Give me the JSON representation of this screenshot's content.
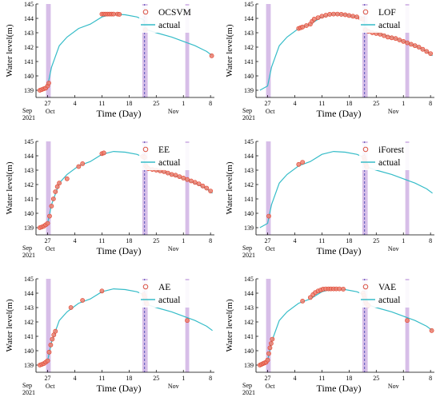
{
  "colors": {
    "line": "#35bcc8",
    "anomaly_fill": "#f07f6f",
    "anomaly_stroke": "#d9402d",
    "highlight_band": "#c9a8e0",
    "dash_line": "#3b3bb0"
  },
  "x_tick_labels": [
    "27",
    "4",
    "11",
    "18",
    "25",
    "1",
    "8"
  ],
  "month_labels": {
    "sep": "Sep",
    "year": "2021",
    "oct": "Oct",
    "nov": "Nov"
  },
  "y_tick_labels": [
    "139",
    "140",
    "141",
    "142",
    "143",
    "144",
    "145"
  ],
  "xlabel": "Time (Day)",
  "ylabel": "Water level(m)",
  "actual_label": "actual",
  "chart_data": [
    {
      "type": "line",
      "title": "",
      "xlabel": "Time (Day)",
      "ylabel": "Water level(m)",
      "legend": {
        "position": "top-right",
        "entries": [
          "OCSVM",
          "actual"
        ]
      },
      "series": [
        {
          "name": "actual",
          "kind": "line",
          "x": [
            -2,
            0,
            1,
            3,
            5,
            8,
            11,
            14,
            17,
            20,
            23,
            24.8,
            25.2,
            28,
            32,
            35,
            38,
            41,
            42.5
          ],
          "y": [
            139.0,
            139.3,
            140.6,
            142.1,
            142.7,
            143.3,
            143.6,
            144.1,
            144.3,
            144.25,
            144.1,
            143.9,
            143.25,
            143.0,
            142.7,
            142.4,
            142.1,
            141.7,
            141.4
          ]
        },
        {
          "name": "OCSVM",
          "kind": "scatter",
          "x": [
            -2,
            -1.5,
            -1,
            -0.5,
            0,
            0.3,
            14,
            14.5,
            15,
            15.5,
            16,
            16.5,
            17,
            18,
            18.5,
            25.2,
            42.3
          ],
          "y": [
            139.0,
            139.05,
            139.1,
            139.15,
            139.3,
            139.5,
            144.3,
            144.3,
            144.3,
            144.3,
            144.3,
            144.3,
            144.3,
            144.3,
            144.28,
            143.2,
            141.4
          ]
        }
      ]
    },
    {
      "type": "line",
      "title": "",
      "xlabel": "Time (Day)",
      "ylabel": "Water level(m)",
      "legend": {
        "position": "top-right",
        "entries": [
          "LOF",
          "actual"
        ]
      },
      "series": [
        {
          "name": "actual",
          "kind": "line",
          "x": [
            -2,
            0,
            1,
            3,
            5,
            8,
            11,
            14,
            17,
            20,
            23,
            24.8,
            25.2,
            28,
            32,
            35,
            38,
            41,
            42.5
          ],
          "y": [
            139.0,
            139.3,
            140.6,
            142.1,
            142.7,
            143.3,
            143.6,
            144.1,
            144.3,
            144.25,
            144.1,
            143.9,
            143.25,
            143.0,
            142.7,
            142.4,
            142.1,
            141.7,
            141.4
          ]
        },
        {
          "name": "LOF",
          "kind": "scatter",
          "x": [
            8,
            8.5,
            9,
            10,
            11,
            11.5,
            12,
            13,
            14,
            15,
            16,
            17,
            18,
            19,
            20,
            21,
            22,
            23,
            24,
            24.5,
            25.2,
            26,
            27,
            28,
            29,
            30,
            31,
            32,
            33,
            34,
            35,
            36,
            37,
            38,
            39,
            40,
            41,
            42
          ],
          "y": [
            143.3,
            143.35,
            143.4,
            143.5,
            143.6,
            143.8,
            143.95,
            144.05,
            144.15,
            144.22,
            144.28,
            144.3,
            144.3,
            144.28,
            144.25,
            144.2,
            144.15,
            144.1,
            144.0,
            143.95,
            143.2,
            143.1,
            143.0,
            142.95,
            142.9,
            142.8,
            142.7,
            142.65,
            142.6,
            142.5,
            142.4,
            142.3,
            142.2,
            142.1,
            142.0,
            141.85,
            141.7,
            141.55
          ]
        }
      ]
    },
    {
      "type": "line",
      "title": "",
      "xlabel": "Time (Day)",
      "ylabel": "Water level(m)",
      "legend": {
        "position": "top-right",
        "entries": [
          "EE",
          "actual"
        ]
      },
      "series": [
        {
          "name": "actual",
          "kind": "line",
          "x": [
            -2,
            0,
            1,
            3,
            5,
            8,
            11,
            14,
            17,
            20,
            23,
            24.8,
            25.2,
            28,
            32,
            35,
            38,
            41,
            42.5
          ],
          "y": [
            139.0,
            139.3,
            140.6,
            142.1,
            142.7,
            143.3,
            143.6,
            144.1,
            144.3,
            144.25,
            144.1,
            143.9,
            143.25,
            143.0,
            142.7,
            142.4,
            142.1,
            141.7,
            141.4
          ]
        },
        {
          "name": "EE",
          "kind": "scatter",
          "x": [
            -2,
            -1.5,
            -1,
            -0.5,
            0,
            0.5,
            1,
            1.5,
            2,
            2.5,
            3,
            5,
            8,
            9,
            14,
            14.5,
            24.5,
            25,
            25.3,
            25.6,
            26,
            27,
            28,
            29,
            30,
            31,
            32,
            33,
            34,
            35,
            36,
            37,
            38,
            39,
            40,
            41,
            42
          ],
          "y": [
            139.0,
            139.05,
            139.1,
            139.2,
            139.3,
            139.8,
            140.5,
            141.0,
            141.5,
            141.85,
            142.1,
            142.4,
            143.25,
            143.45,
            144.15,
            144.2,
            143.95,
            143.9,
            143.3,
            143.2,
            143.1,
            143.05,
            143.0,
            142.95,
            142.9,
            142.8,
            142.7,
            142.65,
            142.55,
            142.45,
            142.35,
            142.25,
            142.15,
            142.05,
            141.9,
            141.75,
            141.55
          ]
        }
      ]
    },
    {
      "type": "line",
      "title": "",
      "xlabel": "Time (Day)",
      "ylabel": "Water level(m)",
      "legend": {
        "position": "top-right",
        "entries": [
          "iForest",
          "actual"
        ]
      },
      "series": [
        {
          "name": "actual",
          "kind": "line",
          "x": [
            -2,
            0,
            1,
            3,
            5,
            8,
            11,
            14,
            17,
            20,
            23,
            24.8,
            25.2,
            28,
            32,
            35,
            38,
            41,
            42.5
          ],
          "y": [
            139.0,
            139.3,
            140.6,
            142.1,
            142.7,
            143.3,
            143.6,
            144.1,
            144.3,
            144.25,
            144.1,
            143.9,
            143.25,
            143.0,
            142.7,
            142.4,
            142.1,
            141.7,
            141.4
          ]
        },
        {
          "name": "iForest",
          "kind": "scatter",
          "x": [
            0.3,
            8,
            9,
            24.8,
            25,
            25.2,
            25.4,
            25.6
          ],
          "y": [
            139.8,
            143.4,
            143.55,
            143.9,
            143.7,
            143.5,
            143.35,
            143.2
          ]
        }
      ]
    },
    {
      "type": "line",
      "title": "",
      "xlabel": "Time (Day)",
      "ylabel": "Water level(m)",
      "legend": {
        "position": "top-right",
        "entries": [
          "AE",
          "actual"
        ]
      },
      "series": [
        {
          "name": "actual",
          "kind": "line",
          "x": [
            -2,
            0,
            1,
            3,
            5,
            8,
            11,
            14,
            17,
            20,
            23,
            24.8,
            25.2,
            28,
            32,
            35,
            38,
            41,
            42.5
          ],
          "y": [
            139.0,
            139.3,
            140.6,
            142.1,
            142.7,
            143.3,
            143.6,
            144.1,
            144.3,
            144.25,
            144.1,
            143.9,
            143.25,
            143.0,
            142.7,
            142.4,
            142.1,
            141.7,
            141.4
          ]
        },
        {
          "name": "AE",
          "kind": "scatter",
          "x": [
            -2,
            -1.5,
            -1,
            -0.5,
            0,
            0.4,
            0.8,
            1.2,
            1.6,
            2,
            6,
            9,
            14,
            24.8,
            25,
            25.2,
            25.4,
            25.6,
            36
          ],
          "y": [
            139.0,
            139.05,
            139.1,
            139.2,
            139.3,
            139.9,
            140.4,
            140.8,
            141.1,
            141.35,
            143.0,
            143.5,
            144.15,
            143.9,
            143.75,
            143.55,
            143.4,
            143.25,
            142.1
          ]
        }
      ]
    },
    {
      "type": "line",
      "title": "",
      "xlabel": "Time (Day)",
      "ylabel": "Water level(m)",
      "legend": {
        "position": "top-right",
        "entries": [
          "VAE",
          "actual"
        ]
      },
      "series": [
        {
          "name": "actual",
          "kind": "line",
          "x": [
            -2,
            0,
            1,
            3,
            5,
            8,
            11,
            14,
            17,
            20,
            23,
            24.8,
            25.2,
            28,
            32,
            35,
            38,
            41,
            42.5
          ],
          "y": [
            139.0,
            139.3,
            140.6,
            142.1,
            142.7,
            143.3,
            143.6,
            144.1,
            144.3,
            144.25,
            144.1,
            143.9,
            143.25,
            143.0,
            142.7,
            142.4,
            142.1,
            141.7,
            141.4
          ]
        },
        {
          "name": "VAE",
          "kind": "scatter",
          "x": [
            -2,
            -1.6,
            -1.2,
            -0.8,
            -0.4,
            0,
            0.3,
            0.6,
            0.9,
            1.2,
            9,
            11,
            11.7,
            12.3,
            13,
            13.7,
            14.3,
            15,
            15.7,
            16.3,
            17,
            17.7,
            18.5,
            19.5,
            24.6,
            24.8,
            25,
            25.2,
            25.4,
            25.7,
            26,
            36,
            42.3
          ],
          "y": [
            139.0,
            139.05,
            139.1,
            139.15,
            139.2,
            139.35,
            139.8,
            140.2,
            140.5,
            140.8,
            143.45,
            143.7,
            143.9,
            144.05,
            144.15,
            144.22,
            144.28,
            144.3,
            144.3,
            144.3,
            144.3,
            144.3,
            144.3,
            144.28,
            144.0,
            143.85,
            143.65,
            143.45,
            143.3,
            143.2,
            143.15,
            142.1,
            141.4
          ]
        }
      ]
    }
  ]
}
